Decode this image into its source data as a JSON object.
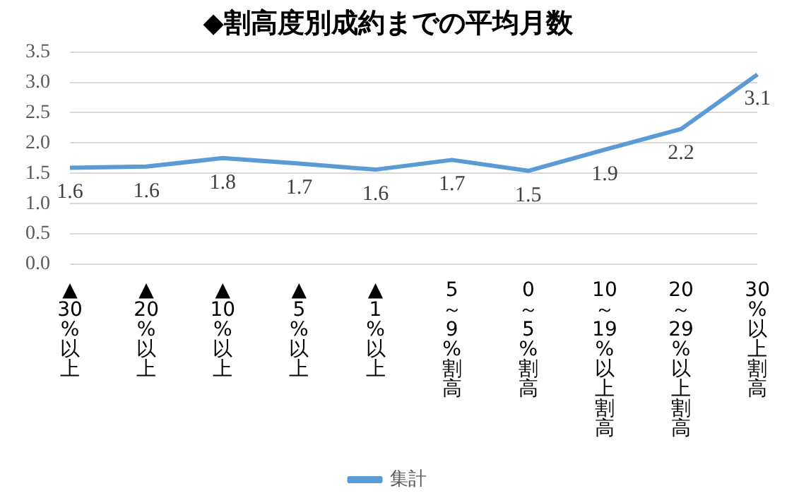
{
  "chart_data": {
    "type": "line",
    "title": "◆割高度別成約までの平均月数",
    "categories": [
      "▲30%以上",
      "▲20%以上",
      "▲10%以上",
      "▲5%以上",
      "▲1%以上",
      "5～9%割高",
      "0～5%割高",
      "10～19%以上割高",
      "20～29%以上割高",
      "30%以上割高"
    ],
    "series": [
      {
        "name": "集計",
        "color": "#5b9bd5",
        "values": [
          1.59,
          1.61,
          1.75,
          1.66,
          1.56,
          1.72,
          1.54,
          1.89,
          2.23,
          3.13
        ],
        "value_labels": [
          "1.6",
          "1.6",
          "1.8",
          "1.7",
          "1.6",
          "1.7",
          "1.5",
          "1.9",
          "2.2",
          "3.1"
        ]
      }
    ],
    "ylim": [
      0,
      3.5
    ],
    "yticks": [
      {
        "value": 0,
        "label": "0.0"
      },
      {
        "value": 0.5,
        "label": "0.5"
      },
      {
        "value": 1,
        "label": "1.0"
      },
      {
        "value": 1.5,
        "label": "1.5"
      },
      {
        "value": 2,
        "label": "2.0"
      },
      {
        "value": 2.5,
        "label": "2.5"
      },
      {
        "value": 3,
        "label": "3.0"
      },
      {
        "value": 3.5,
        "label": "3.5"
      }
    ],
    "grid": "y",
    "legend": "bottom",
    "marker": "none",
    "line_style": "solid"
  }
}
